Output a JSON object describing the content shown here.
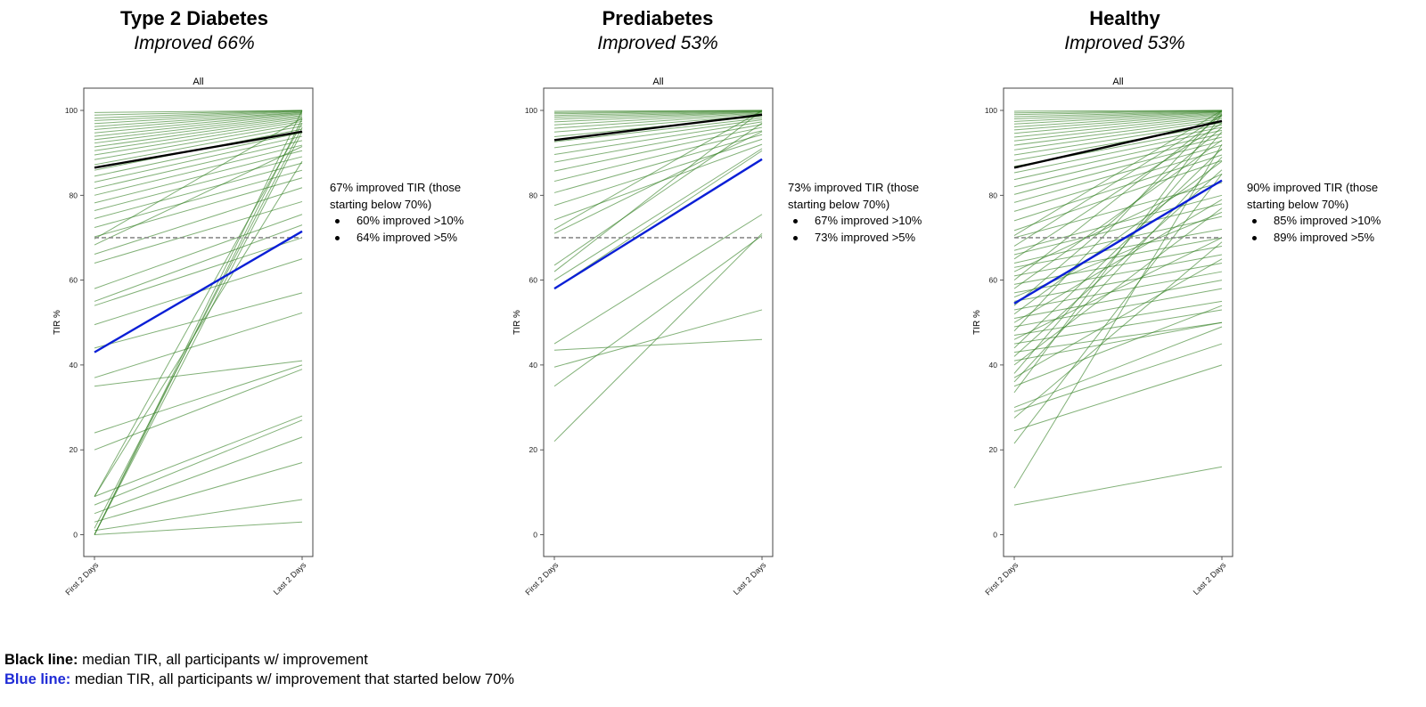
{
  "chart_data": [
    {
      "type": "line",
      "title": "Type 2 Diabetes",
      "subtitle": "Improved 66%",
      "axes_title": "All",
      "ylabel": "TIR %",
      "categories": [
        "First 2 Days",
        "Last 2 Days"
      ],
      "yticks": [
        0,
        20,
        40,
        60,
        80,
        100
      ],
      "ylim": [
        -5,
        106
      ],
      "reference_line": 70,
      "median_all": [
        86.5,
        95
      ],
      "median_below70": [
        43,
        71.5
      ],
      "participants": [
        [
          99.5,
          100
        ],
        [
          98.9,
          100
        ],
        [
          98.2,
          100
        ],
        [
          97.6,
          99.9
        ],
        [
          96.9,
          99.8
        ],
        [
          96.2,
          99.6
        ],
        [
          95.5,
          99.5
        ],
        [
          94.7,
          99.3
        ],
        [
          93.9,
          99.1
        ],
        [
          93.1,
          98.8
        ],
        [
          92.3,
          98.5
        ],
        [
          91.4,
          98.2
        ],
        [
          90.5,
          97.8
        ],
        [
          89.5,
          97.4
        ],
        [
          88.4,
          96.9
        ],
        [
          87.2,
          96.3
        ],
        [
          85.9,
          95.6
        ],
        [
          84.5,
          94.8
        ],
        [
          83.1,
          93.9
        ],
        [
          81.6,
          92.9
        ],
        [
          80,
          91.8
        ],
        [
          78.2,
          90.5
        ],
        [
          76.4,
          89.1
        ],
        [
          74.5,
          87.6
        ],
        [
          72.4,
          85.9
        ],
        [
          70.2,
          84.1
        ],
        [
          69.7,
          98.2
        ],
        [
          68.3,
          91.5
        ],
        [
          66.1,
          81.8
        ],
        [
          64,
          78.5
        ],
        [
          58,
          75.5
        ],
        [
          55,
          73
        ],
        [
          54,
          70
        ],
        [
          49.5,
          65
        ],
        [
          44,
          57
        ],
        [
          37,
          52.3
        ],
        [
          35,
          41
        ],
        [
          24,
          40
        ],
        [
          20,
          39
        ],
        [
          9,
          88
        ],
        [
          9,
          97
        ],
        [
          9,
          28
        ],
        [
          7,
          27
        ],
        [
          5,
          23
        ],
        [
          3,
          17
        ],
        [
          1.5,
          96
        ],
        [
          1,
          8.3
        ],
        [
          0,
          3
        ],
        [
          0,
          100
        ],
        [
          0,
          95
        ],
        [
          0,
          98
        ]
      ],
      "improvement_note": "67% improved TIR (those starting below 70%)",
      "bullets": [
        "60% improved >10%",
        "64% improved >5%"
      ]
    },
    {
      "type": "line",
      "title": "Prediabetes",
      "subtitle": "Improved 53%",
      "axes_title": "All",
      "ylabel": "TIR %",
      "categories": [
        "First 2 Days",
        "Last 2 Days"
      ],
      "yticks": [
        0,
        20,
        40,
        60,
        80,
        100
      ],
      "ylim": [
        -5,
        106
      ],
      "reference_line": 70,
      "median_all": [
        93,
        99
      ],
      "median_below70": [
        58,
        88.5
      ],
      "participants": [
        [
          99.8,
          100
        ],
        [
          99.5,
          100
        ],
        [
          99.2,
          100
        ],
        [
          98.8,
          99.9
        ],
        [
          98.4,
          99.8
        ],
        [
          97.9,
          99.7
        ],
        [
          97.3,
          99.6
        ],
        [
          96.6,
          99.4
        ],
        [
          95.8,
          99.2
        ],
        [
          94.9,
          98.9
        ],
        [
          93.8,
          98.6
        ],
        [
          92.6,
          98.2
        ],
        [
          91.2,
          97.8
        ],
        [
          89.6,
          97.3
        ],
        [
          87.8,
          96.7
        ],
        [
          85.7,
          96
        ],
        [
          83.3,
          95.2
        ],
        [
          80.6,
          94.3
        ],
        [
          77.6,
          93.2
        ],
        [
          74.2,
          92
        ],
        [
          72,
          100
        ],
        [
          71,
          95
        ],
        [
          63.5,
          97
        ],
        [
          62,
          100
        ],
        [
          60,
          91
        ],
        [
          58,
          90.5
        ],
        [
          45,
          75.5
        ],
        [
          43.5,
          46
        ],
        [
          39.5,
          53
        ],
        [
          22,
          71
        ],
        [
          35,
          70.5
        ]
      ],
      "improvement_note": "73% improved TIR (those starting below 70%)",
      "bullets": [
        "67% improved >10%",
        "73% improved >5%"
      ]
    },
    {
      "type": "line",
      "title": "Healthy",
      "subtitle": "Improved 53%",
      "axes_title": "All",
      "ylabel": "TIR %",
      "categories": [
        "First 2 Days",
        "Last 2 Days"
      ],
      "yticks": [
        0,
        20,
        40,
        60,
        80,
        100
      ],
      "ylim": [
        -5,
        106
      ],
      "reference_line": 70,
      "median_all": [
        86.5,
        97.5
      ],
      "median_below70": [
        54.5,
        83.5
      ],
      "participants": [
        [
          99.8,
          100
        ],
        [
          99.4,
          100
        ],
        [
          99,
          100
        ],
        [
          98.5,
          99.9
        ],
        [
          98,
          99.8
        ],
        [
          97.4,
          99.7
        ],
        [
          96.8,
          99.6
        ],
        [
          96.1,
          99.4
        ],
        [
          95.4,
          99.2
        ],
        [
          94.6,
          99
        ],
        [
          93.7,
          98.7
        ],
        [
          92.8,
          98.4
        ],
        [
          91.8,
          98
        ],
        [
          90.7,
          97.6
        ],
        [
          89.5,
          97.1
        ],
        [
          88.2,
          96.6
        ],
        [
          86.8,
          96
        ],
        [
          85.3,
          95.3
        ],
        [
          83.7,
          94.5
        ],
        [
          82,
          93.7
        ],
        [
          80.2,
          92.8
        ],
        [
          78.3,
          91.8
        ],
        [
          76.2,
          90.7
        ],
        [
          74,
          89.5
        ],
        [
          71.7,
          88.2
        ],
        [
          70.5,
          100
        ],
        [
          70,
          83
        ],
        [
          68,
          99
        ],
        [
          67,
          80
        ],
        [
          66,
          78
        ],
        [
          65,
          97
        ],
        [
          64,
          75
        ],
        [
          63,
          72
        ],
        [
          62,
          85
        ],
        [
          61,
          70
        ],
        [
          60,
          99
        ],
        [
          59,
          68
        ],
        [
          58,
          93
        ],
        [
          57,
          66
        ],
        [
          56,
          76
        ],
        [
          55,
          64
        ],
        [
          54,
          96
        ],
        [
          53,
          62
        ],
        [
          52,
          88
        ],
        [
          51,
          60
        ],
        [
          50,
          79
        ],
        [
          49,
          58
        ],
        [
          48,
          100
        ],
        [
          47,
          55
        ],
        [
          46,
          70
        ],
        [
          45,
          53
        ],
        [
          44,
          91
        ],
        [
          43,
          50
        ],
        [
          42,
          86
        ],
        [
          41,
          50
        ],
        [
          40,
          77
        ],
        [
          38,
          95
        ],
        [
          37,
          65
        ],
        [
          36,
          89
        ],
        [
          35,
          54
        ],
        [
          33.5,
          99
        ],
        [
          30,
          49
        ],
        [
          29,
          45
        ],
        [
          27.5,
          69
        ],
        [
          24.5,
          40
        ],
        [
          21.5,
          85
        ],
        [
          11,
          92
        ],
        [
          7,
          16
        ]
      ],
      "improvement_note": "90% improved TIR (those starting below 70%)",
      "bullets": [
        "85% improved >10%",
        "89% improved >5%"
      ]
    }
  ],
  "legend": {
    "black_label": "Black line:",
    "black_text": " median TIR, all participants w/ improvement",
    "blue_label": "Blue line:",
    "blue_text": " median TIR, all participants w/ improvement that started below 70%"
  },
  "colors": {
    "participant": "#2e7d1e",
    "median_all": "#000000",
    "median_below70": "#0a1fd6",
    "reference": "#8c8c8c",
    "legend_blue": "#1f2bd6"
  }
}
